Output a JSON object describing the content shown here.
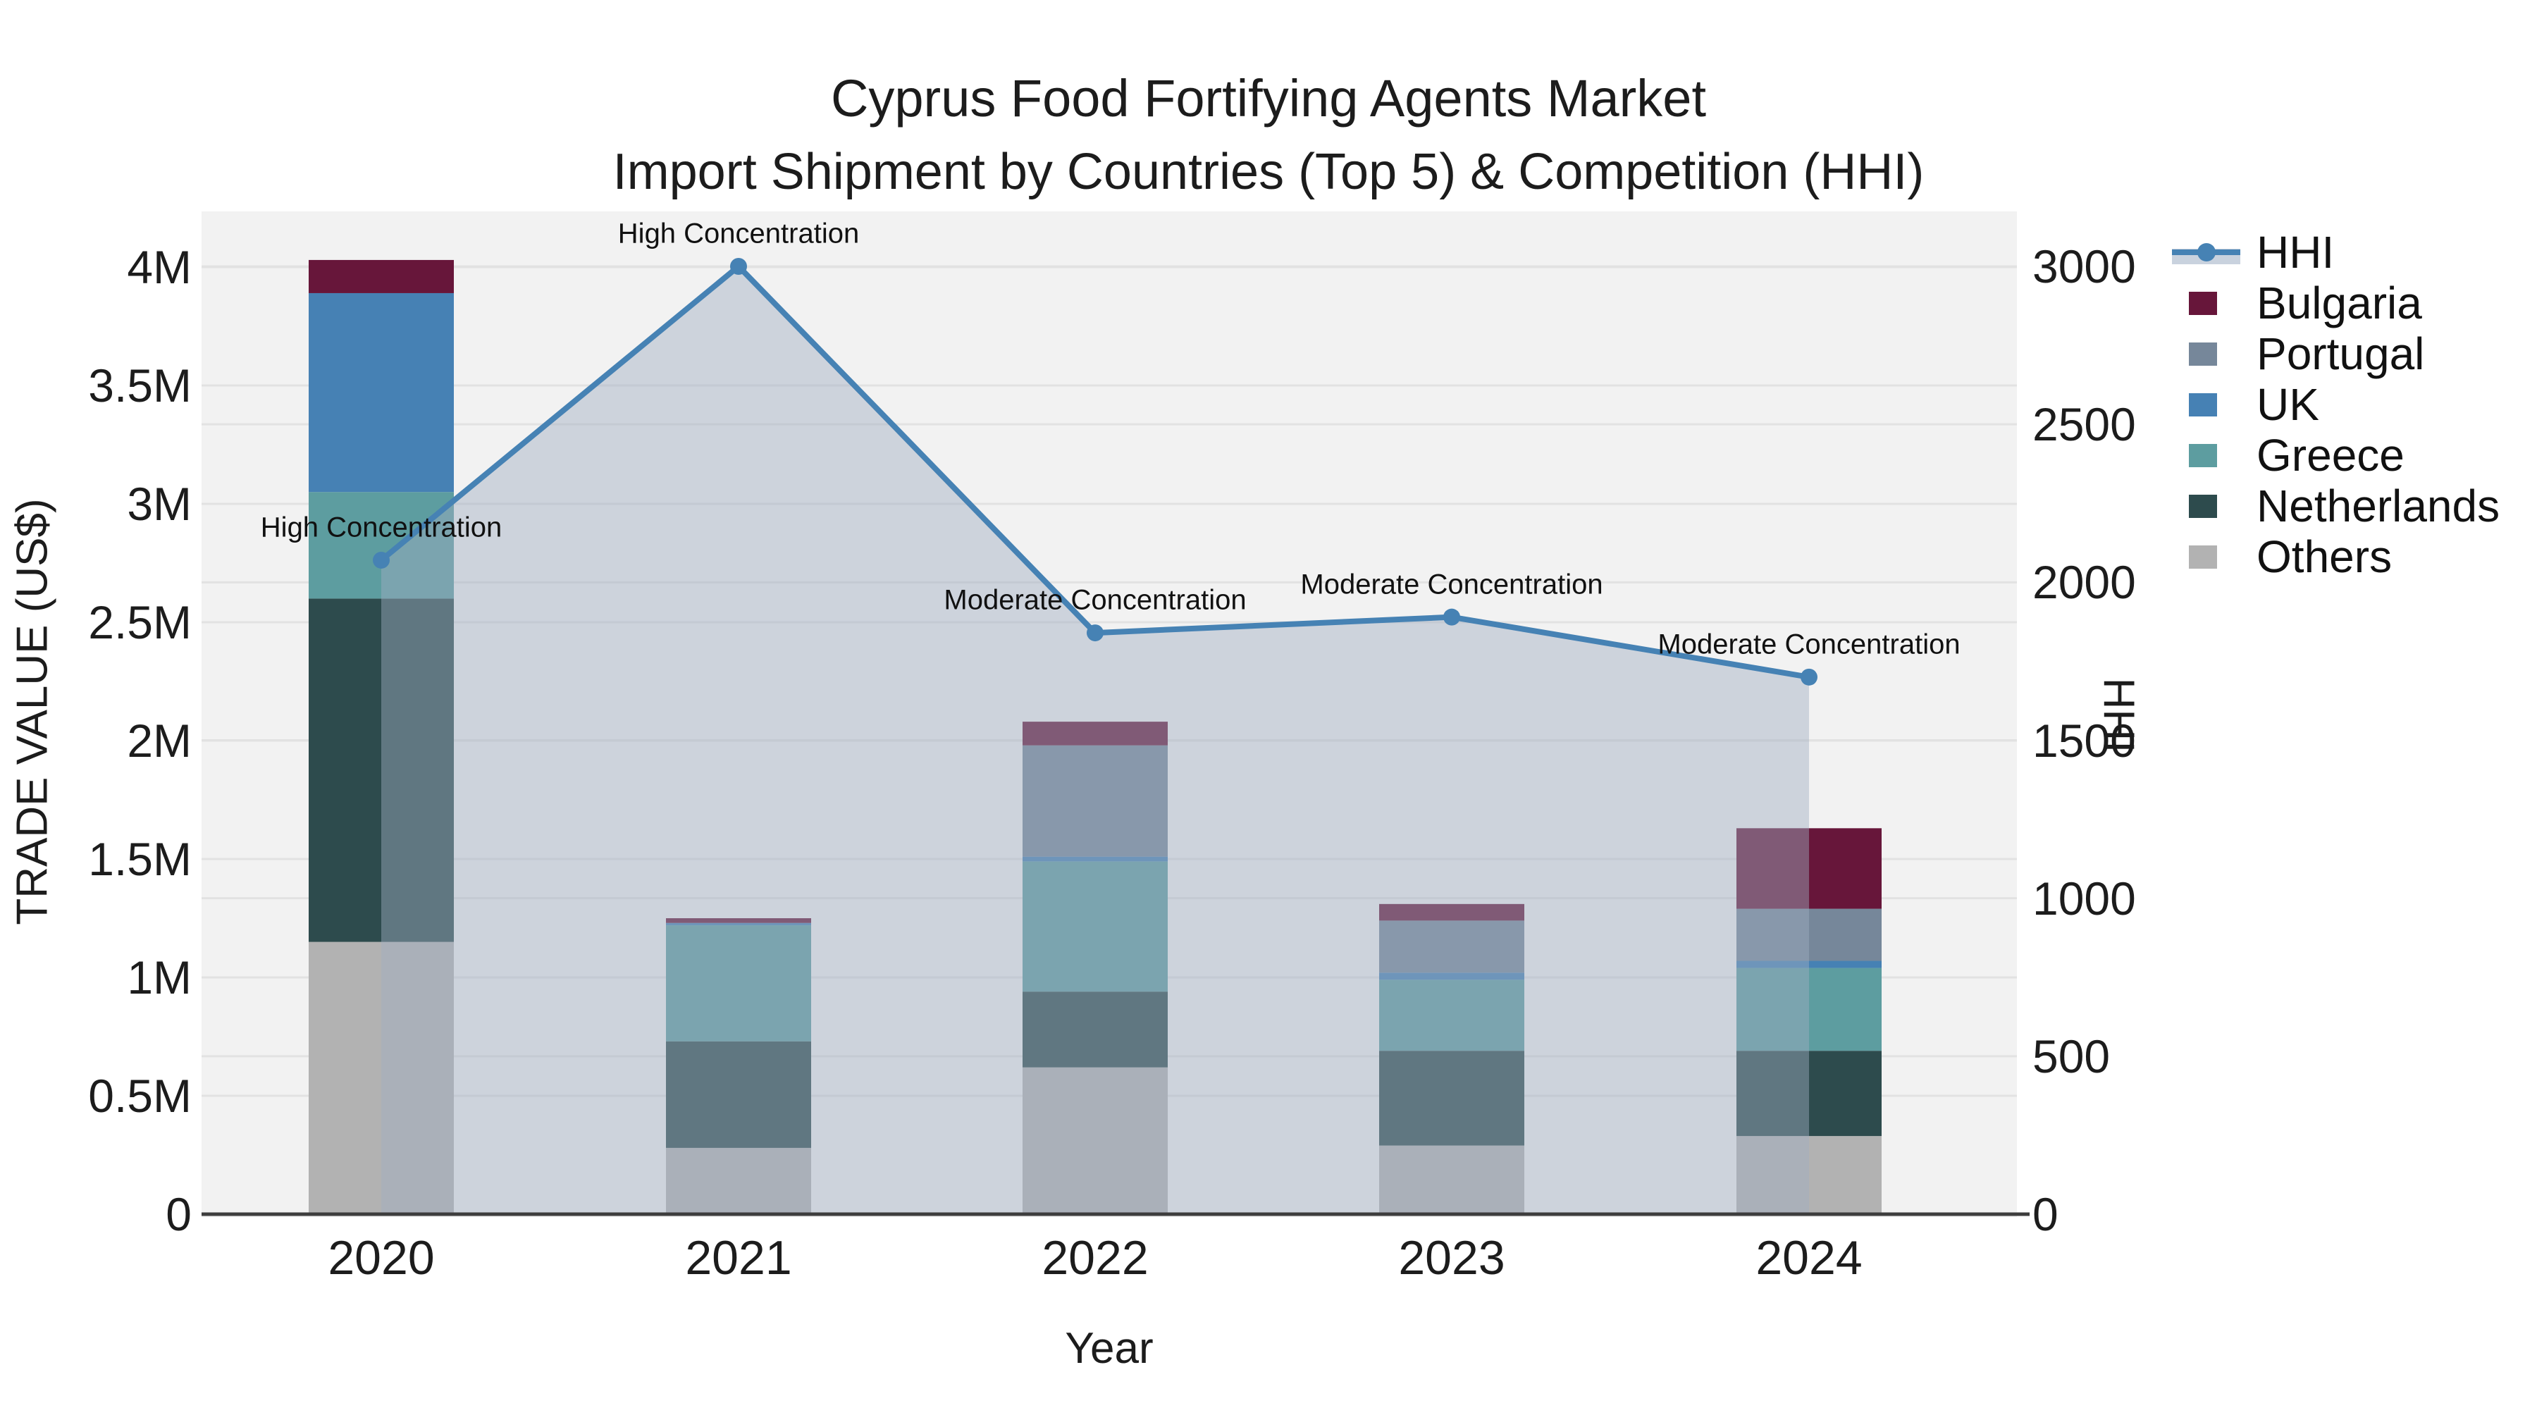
{
  "title": {
    "line1": "Cyprus Food Fortifying Agents Market",
    "line2": "Import Shipment by Countries (Top 5) & Competition (HHI)"
  },
  "axes": {
    "x": {
      "label": "Year",
      "ticks": [
        "2020",
        "2021",
        "2022",
        "2023",
        "2024"
      ]
    },
    "left": {
      "label": "TRADE VALUE (US$)",
      "ticks": [
        "0",
        "0.5M",
        "1M",
        "1.5M",
        "2M",
        "2.5M",
        "3M",
        "3.5M",
        "4M"
      ],
      "tick_values": [
        0,
        500000,
        1000000,
        1500000,
        2000000,
        2500000,
        3000000,
        3500000,
        4000000
      ],
      "max": 4000000
    },
    "right": {
      "label": "HHI",
      "ticks": [
        "0",
        "500",
        "1000",
        "1500",
        "2000",
        "2500",
        "3000"
      ],
      "tick_values": [
        0,
        500,
        1000,
        1500,
        2000,
        2500,
        3000
      ],
      "max": 3000
    }
  },
  "colors": {
    "plot_background": "#f2f2f2",
    "gridline": "#e2e2e2",
    "baseline": "#3d3d3d",
    "hhi_line": "#4682b4",
    "hhi_area": "rgba(160,172,194,0.45)",
    "hhi_legend_band": "#c9d2de",
    "Bulgaria": "#67163a",
    "Portugal": "#76879a",
    "UK": "#4681b4",
    "Greece": "#5d9da0",
    "Netherlands": "#2d4b4d",
    "Others": "#b2b2b2"
  },
  "legend": [
    {
      "label": "HHI",
      "type": "line"
    },
    {
      "label": "Bulgaria",
      "type": "swatch"
    },
    {
      "label": "Portugal",
      "type": "swatch"
    },
    {
      "label": "UK",
      "type": "swatch"
    },
    {
      "label": "Greece",
      "type": "swatch"
    },
    {
      "label": "Netherlands",
      "type": "swatch"
    },
    {
      "label": "Others",
      "type": "swatch"
    }
  ],
  "chart_data": {
    "type": "combo: stacked-bar (left axis) + line with area fill (right axis)",
    "categories": [
      "2020",
      "2021",
      "2022",
      "2023",
      "2024"
    ],
    "bars": {
      "unit": "US$",
      "stack_order_bottom_to_top": [
        "Others",
        "Netherlands",
        "Greece",
        "UK",
        "Portugal",
        "Bulgaria"
      ],
      "series": [
        {
          "name": "Bulgaria",
          "values": [
            140000,
            20000,
            100000,
            70000,
            340000
          ]
        },
        {
          "name": "Portugal",
          "values": [
            0,
            0,
            470000,
            220000,
            220000
          ]
        },
        {
          "name": "UK",
          "values": [
            840000,
            10000,
            20000,
            30000,
            30000
          ]
        },
        {
          "name": "Greece",
          "values": [
            450000,
            490000,
            550000,
            300000,
            350000
          ]
        },
        {
          "name": "Netherlands",
          "values": [
            1450000,
            450000,
            320000,
            400000,
            360000
          ]
        },
        {
          "name": "Others",
          "values": [
            1150000,
            280000,
            620000,
            290000,
            330000
          ]
        }
      ],
      "totals": [
        4030000,
        1250000,
        2080000,
        1310000,
        1630000
      ]
    },
    "line": {
      "name": "HHI",
      "axis": "right",
      "values": [
        2070,
        3000,
        1840,
        1890,
        1700
      ]
    },
    "annotations": [
      "High Concentration",
      "High Concentration",
      "Moderate Concentration",
      "Moderate Concentration",
      "Moderate Concentration"
    ],
    "xlabel": "Year",
    "ylabel_left": "TRADE VALUE (US$)",
    "ylabel_right": "HHI",
    "ylim_left": [
      0,
      4000000
    ],
    "ylim_right": [
      0,
      3000
    ],
    "grid": true,
    "legend_position": "right"
  }
}
